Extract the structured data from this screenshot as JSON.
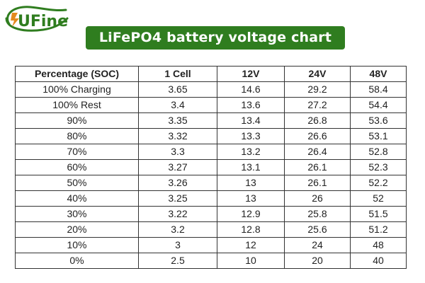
{
  "logo": {
    "text": "UFine",
    "icon": "ufine-leaf-logo",
    "colors": {
      "primary": "#2f7d1f",
      "accent": "#e38a1e"
    }
  },
  "title": "LiFePO4 battery voltage chart",
  "colors": {
    "banner_bg": "#2f7d1f",
    "banner_text": "#ffffff",
    "table_border": "#333333",
    "text": "#222222"
  },
  "table": {
    "headers": [
      "Percentage (SOC)",
      "1 Cell",
      "12V",
      "24V",
      "48V"
    ],
    "rows": [
      [
        "100% Charging",
        "3.65",
        "14.6",
        "29.2",
        "58.4"
      ],
      [
        "100% Rest",
        "3.4",
        "13.6",
        "27.2",
        "54.4"
      ],
      [
        "90%",
        "3.35",
        "13.4",
        "26.8",
        "53.6"
      ],
      [
        "80%",
        "3.32",
        "13.3",
        "26.6",
        "53.1"
      ],
      [
        "70%",
        "3.3",
        "13.2",
        "26.4",
        "52.8"
      ],
      [
        "60%",
        "3.27",
        "13.1",
        "26.1",
        "52.3"
      ],
      [
        "50%",
        "3.26",
        "13",
        "26.1",
        "52.2"
      ],
      [
        "40%",
        "3.25",
        "13",
        "26",
        "52"
      ],
      [
        "30%",
        "3.22",
        "12.9",
        "25.8",
        "51.5"
      ],
      [
        "20%",
        "3.2",
        "12.8",
        "25.6",
        "51.2"
      ],
      [
        "10%",
        "3",
        "12",
        "24",
        "48"
      ],
      [
        "0%",
        "2.5",
        "10",
        "20",
        "40"
      ]
    ]
  }
}
